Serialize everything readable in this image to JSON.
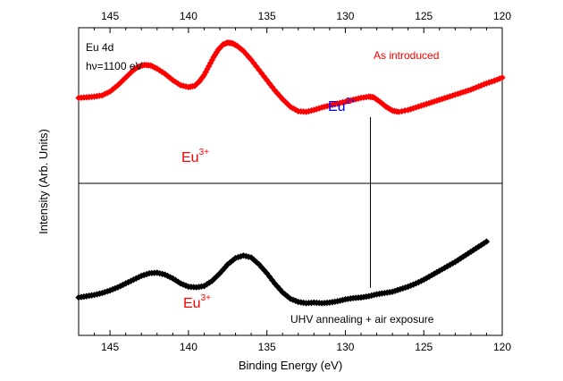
{
  "chart_data": {
    "type": "scatter",
    "xlabel": "Binding Energy (eV)",
    "ylabel": "Intensity (Arb. Units)",
    "xlim": [
      147,
      120
    ],
    "ylim": [
      0,
      10
    ],
    "xticks": [
      145,
      140,
      135,
      130,
      125,
      120
    ],
    "xtick_labels": [
      "145",
      "140",
      "135",
      "130",
      "125",
      "120"
    ],
    "panels": {
      "top": {
        "label_line1": "Eu 4d",
        "label_line2": "hν=1100 eV",
        "condition": "As introduced",
        "annotation_main": "Eu",
        "annotation_main_sup": "3+",
        "annotation_peak": "Eu",
        "annotation_peak_sup": "2+",
        "marker_line_x": 128.4
      },
      "bottom": {
        "condition": "UHV annealing + air exposure",
        "annotation_main": "Eu",
        "annotation_main_sup": "3+"
      }
    },
    "series": [
      {
        "name": "As introduced",
        "panel": "top",
        "color": "#ff0000",
        "points": [
          [
            147.0,
            5.6
          ],
          [
            146.5,
            5.65
          ],
          [
            146.0,
            5.7
          ],
          [
            145.5,
            5.8
          ],
          [
            145.0,
            6.1
          ],
          [
            144.5,
            6.6
          ],
          [
            144.0,
            7.2
          ],
          [
            143.5,
            7.8
          ],
          [
            143.2,
            8.05
          ],
          [
            142.8,
            8.2
          ],
          [
            142.4,
            8.15
          ],
          [
            142.0,
            7.9
          ],
          [
            141.5,
            7.5
          ],
          [
            141.0,
            7.0
          ],
          [
            140.5,
            6.6
          ],
          [
            140.0,
            6.45
          ],
          [
            139.6,
            6.55
          ],
          [
            139.3,
            6.9
          ],
          [
            139.0,
            7.4
          ],
          [
            138.7,
            8.1
          ],
          [
            138.4,
            8.8
          ],
          [
            138.1,
            9.4
          ],
          [
            137.8,
            9.8
          ],
          [
            137.5,
            9.95
          ],
          [
            137.2,
            9.9
          ],
          [
            136.9,
            9.7
          ],
          [
            136.5,
            9.3
          ],
          [
            136.0,
            8.6
          ],
          [
            135.5,
            7.8
          ],
          [
            135.0,
            7.0
          ],
          [
            134.5,
            6.2
          ],
          [
            134.0,
            5.5
          ],
          [
            133.5,
            4.9
          ],
          [
            133.0,
            4.55
          ],
          [
            132.5,
            4.5
          ],
          [
            132.0,
            4.65
          ],
          [
            131.5,
            4.85
          ],
          [
            131.0,
            5.0
          ],
          [
            130.5,
            5.15
          ],
          [
            130.0,
            5.3
          ],
          [
            129.5,
            5.45
          ],
          [
            129.0,
            5.6
          ],
          [
            128.5,
            5.7
          ],
          [
            128.2,
            5.65
          ],
          [
            127.8,
            5.3
          ],
          [
            127.4,
            4.9
          ],
          [
            127.0,
            4.6
          ],
          [
            126.6,
            4.5
          ],
          [
            126.0,
            4.65
          ],
          [
            125.5,
            4.85
          ],
          [
            125.0,
            5.05
          ],
          [
            124.5,
            5.25
          ],
          [
            124.0,
            5.45
          ],
          [
            123.5,
            5.65
          ],
          [
            123.0,
            5.85
          ],
          [
            122.5,
            6.05
          ],
          [
            122.0,
            6.25
          ],
          [
            121.5,
            6.5
          ],
          [
            121.0,
            6.75
          ],
          [
            120.5,
            6.95
          ],
          [
            120.0,
            7.2
          ]
        ]
      },
      {
        "name": "UHV annealing + air exposure",
        "panel": "bottom",
        "color": "#000000",
        "points": [
          [
            147.0,
            2.0
          ],
          [
            146.5,
            2.1
          ],
          [
            146.0,
            2.2
          ],
          [
            145.5,
            2.35
          ],
          [
            145.0,
            2.55
          ],
          [
            144.5,
            2.8
          ],
          [
            144.0,
            3.1
          ],
          [
            143.5,
            3.4
          ],
          [
            143.0,
            3.7
          ],
          [
            142.5,
            3.9
          ],
          [
            142.0,
            3.95
          ],
          [
            141.5,
            3.8
          ],
          [
            141.0,
            3.5
          ],
          [
            140.5,
            3.1
          ],
          [
            140.0,
            2.85
          ],
          [
            139.5,
            2.8
          ],
          [
            139.0,
            2.9
          ],
          [
            138.5,
            3.3
          ],
          [
            138.0,
            3.9
          ],
          [
            137.5,
            4.6
          ],
          [
            137.0,
            5.1
          ],
          [
            136.5,
            5.3
          ],
          [
            136.0,
            5.15
          ],
          [
            135.5,
            4.6
          ],
          [
            135.0,
            3.9
          ],
          [
            134.5,
            3.1
          ],
          [
            134.0,
            2.4
          ],
          [
            133.5,
            1.9
          ],
          [
            133.0,
            1.65
          ],
          [
            132.5,
            1.55
          ],
          [
            132.0,
            1.6
          ],
          [
            131.5,
            1.55
          ],
          [
            131.0,
            1.6
          ],
          [
            130.5,
            1.7
          ],
          [
            130.0,
            1.85
          ],
          [
            129.5,
            1.95
          ],
          [
            129.0,
            2.0
          ],
          [
            128.5,
            2.1
          ],
          [
            128.0,
            2.25
          ],
          [
            127.5,
            2.35
          ],
          [
            127.0,
            2.45
          ],
          [
            126.5,
            2.65
          ],
          [
            126.0,
            2.85
          ],
          [
            125.5,
            3.1
          ],
          [
            125.0,
            3.4
          ],
          [
            124.5,
            3.75
          ],
          [
            124.0,
            4.1
          ],
          [
            123.5,
            4.45
          ],
          [
            123.0,
            4.8
          ],
          [
            122.5,
            5.2
          ],
          [
            122.0,
            5.6
          ],
          [
            121.5,
            6.0
          ],
          [
            121.0,
            6.4
          ]
        ]
      }
    ]
  }
}
